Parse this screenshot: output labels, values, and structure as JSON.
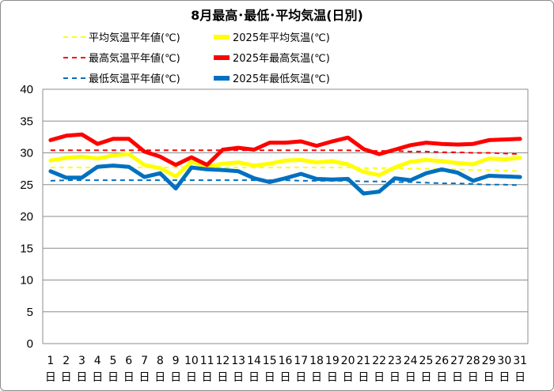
{
  "chart_data": {
    "type": "line",
    "title": "8月最高･最低･平均気温(日別)",
    "x": [
      "1日",
      "2日",
      "3日",
      "4日",
      "5日",
      "6日",
      "7日",
      "8日",
      "9日",
      "10日",
      "11日",
      "12日",
      "13日",
      "14日",
      "15日",
      "16日",
      "17日",
      "18日",
      "19日",
      "20日",
      "21日",
      "22日",
      "23日",
      "24日",
      "25日",
      "26日",
      "27日",
      "28日",
      "29日",
      "30日",
      "31日"
    ],
    "x_tick_numbers": [
      "1",
      "2",
      "3",
      "4",
      "5",
      "6",
      "7",
      "8",
      "9",
      "10",
      "11",
      "12",
      "13",
      "14",
      "15",
      "16",
      "17",
      "18",
      "19",
      "20",
      "21",
      "22",
      "23",
      "24",
      "25",
      "26",
      "27",
      "28",
      "29",
      "30",
      "31"
    ],
    "x_tick_suffix": "日",
    "y_ticks": [
      0,
      5,
      10,
      15,
      20,
      25,
      30,
      35,
      40
    ],
    "ylim": [
      0,
      40
    ],
    "grid": "horizontal",
    "legend_position": "top",
    "series": [
      {
        "name": "平均気温平年値(℃)",
        "style": "dashed",
        "color": "#ffff00",
        "values": [
          27.7,
          27.7,
          27.7,
          27.7,
          27.7,
          27.7,
          27.7,
          27.7,
          27.7,
          27.7,
          27.7,
          27.7,
          27.7,
          27.7,
          27.7,
          27.7,
          27.7,
          27.7,
          27.7,
          27.7,
          27.6,
          27.6,
          27.6,
          27.5,
          27.5,
          27.4,
          27.4,
          27.3,
          27.3,
          27.2,
          27.1
        ]
      },
      {
        "name": "2025年平均気温(℃)",
        "style": "solid",
        "color": "#ffff00",
        "values": [
          28.8,
          29.2,
          29.4,
          29.1,
          29.6,
          29.8,
          28.1,
          27.6,
          26.3,
          28.6,
          27.8,
          28.3,
          28.5,
          28.0,
          28.3,
          28.8,
          28.9,
          28.5,
          28.7,
          28.2,
          27.0,
          26.5,
          27.7,
          28.6,
          28.9,
          28.7,
          28.4,
          28.2,
          29.1,
          29.0,
          29.2
        ]
      },
      {
        "name": "最高気温平年値(℃)",
        "style": "dashed",
        "color": "#ff0000",
        "values": [
          30.4,
          30.4,
          30.4,
          30.4,
          30.4,
          30.4,
          30.4,
          30.4,
          30.4,
          30.4,
          30.4,
          30.4,
          30.4,
          30.4,
          30.4,
          30.4,
          30.4,
          30.4,
          30.4,
          30.4,
          30.3,
          30.3,
          30.3,
          30.2,
          30.2,
          30.1,
          30.1,
          30.0,
          30.0,
          29.9,
          29.8
        ]
      },
      {
        "name": "2025年最高気温(℃)",
        "style": "solid",
        "color": "#ff0000",
        "values": [
          32.0,
          32.7,
          32.9,
          31.4,
          32.2,
          32.2,
          30.2,
          29.4,
          28.1,
          29.3,
          28.1,
          30.5,
          30.8,
          30.5,
          31.6,
          31.6,
          31.8,
          31.1,
          31.8,
          32.4,
          30.6,
          29.8,
          30.5,
          31.2,
          31.6,
          31.4,
          31.3,
          31.4,
          32.0,
          32.1,
          32.2
        ]
      },
      {
        "name": "最低気温平年値(℃)",
        "style": "dashed",
        "color": "#0070c0",
        "values": [
          25.6,
          25.7,
          25.7,
          25.7,
          25.7,
          25.7,
          25.7,
          25.7,
          25.7,
          25.7,
          25.7,
          25.7,
          25.7,
          25.7,
          25.7,
          25.7,
          25.6,
          25.6,
          25.6,
          25.6,
          25.5,
          25.5,
          25.4,
          25.4,
          25.3,
          25.2,
          25.2,
          25.1,
          25.0,
          25.0,
          24.9
        ]
      },
      {
        "name": "2025年最低気温(℃)",
        "style": "solid",
        "color": "#0070c0",
        "values": [
          27.1,
          26.1,
          26.1,
          27.8,
          28.0,
          27.8,
          26.2,
          26.8,
          24.4,
          27.7,
          27.4,
          27.3,
          27.1,
          26.0,
          25.4,
          26.0,
          26.7,
          25.9,
          25.8,
          25.9,
          23.6,
          23.9,
          26.0,
          25.7,
          26.8,
          27.4,
          26.9,
          25.6,
          26.4,
          26.3,
          26.2
        ]
      }
    ]
  }
}
